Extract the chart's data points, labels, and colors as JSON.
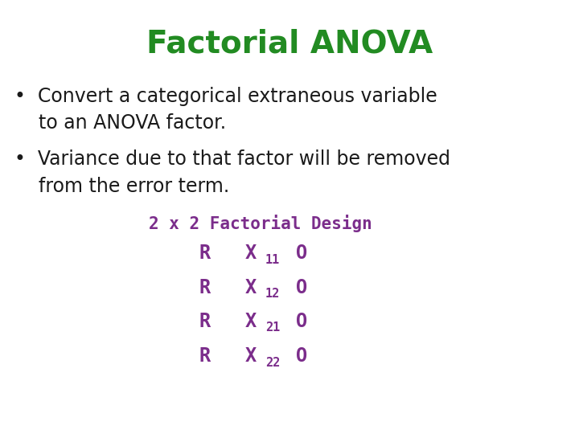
{
  "title": "Factorial ANOVA",
  "title_color": "#228B22",
  "title_fontsize": 28,
  "bullet_color": "#1a1a1a",
  "bullet_fontsize": 17,
  "bullet1_line1": "•  Convert a categorical extraneous variable",
  "bullet1_line2": "    to an ANOVA factor.",
  "bullet2_line1": "•  Variance due to that factor will be removed",
  "bullet2_line2": "    from the error term.",
  "design_label": "2 x 2 Factorial Design",
  "design_color": "#7B2D8B",
  "design_fontsize": 15,
  "table_color": "#7B2D8B",
  "table_fontsize": 17,
  "sub_fontsize": 11,
  "background_color": "#ffffff",
  "rows": [
    {
      "col1": "R",
      "col2_main": "X",
      "col2_sub": "11",
      "col3": "O"
    },
    {
      "col1": "R",
      "col2_main": "X",
      "col2_sub": "12",
      "col3": "O"
    },
    {
      "col1": "R",
      "col2_main": "X",
      "col2_sub": "21",
      "col3": "O"
    },
    {
      "col1": "R",
      "col2_main": "X",
      "col2_sub": "22",
      "col3": "O"
    }
  ]
}
